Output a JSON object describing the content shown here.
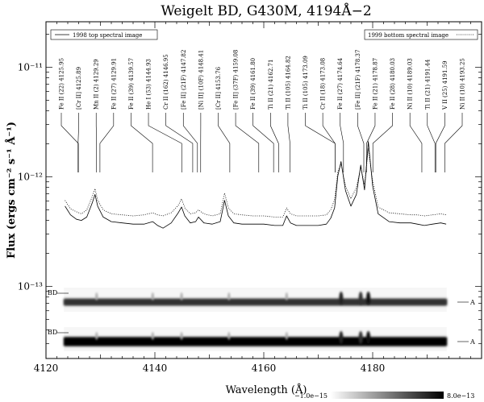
{
  "chart_data": {
    "type": "line",
    "title": "Weigelt BD, G430M, 4194Å−2",
    "xlabel": "Wavelength (Å)",
    "ylabel": "Flux (ergs cm⁻² s⁻¹ Å⁻¹)",
    "xlim": [
      4120,
      4200
    ],
    "ylim": [
      2.2e-14,
      2.6e-11
    ],
    "y_scale": "log",
    "x_ticks": [
      4120,
      4140,
      4160,
      4180
    ],
    "y_ticks": [
      {
        "value": 1e-13,
        "label": "10⁻¹³"
      },
      {
        "value": 1e-12,
        "label": "10⁻¹²"
      },
      {
        "value": 1e-11,
        "label": "10⁻¹¹"
      }
    ],
    "legend": [
      "1998 top spectral image",
      "1999 bottom spectral image"
    ],
    "series": [
      {
        "name": "1998 top spectral image",
        "style": "solid",
        "x": [
          4123.5,
          4124.5,
          4125.6,
          4126.5,
          4127.5,
          4128.5,
          4129.0,
          4129.5,
          4130.5,
          4132.0,
          4134.0,
          4136.0,
          4138.0,
          4139.6,
          4140.5,
          4141.5,
          4143.0,
          4144.3,
          4144.9,
          4145.5,
          4146.5,
          4147.5,
          4148.0,
          4149.0,
          4150.5,
          4152.0,
          4152.8,
          4153.5,
          4154.5,
          4156.0,
          4158.0,
          4160.0,
          4162.0,
          4163.5,
          4164.2,
          4164.9,
          4166.0,
          4168.0,
          4170.0,
          4171.5,
          4172.3,
          4173.0,
          4173.6,
          4174.2,
          4175.0,
          4176.0,
          4177.0,
          4177.8,
          4178.5,
          4179.2,
          4180.0,
          4181.0,
          4183.0,
          4185.0,
          4187.0,
          4188.2,
          4189.5,
          4191.0,
          4192.5,
          4193.5
        ],
        "y": [
          5.4e-13,
          4.5e-13,
          4.1e-13,
          4e-13,
          4.3e-13,
          5.8e-13,
          6.9e-13,
          5.4e-13,
          4.3e-13,
          3.9e-13,
          3.8e-13,
          3.7e-13,
          3.7e-13,
          3.9e-13,
          3.6e-13,
          3.4e-13,
          3.8e-13,
          4.7e-13,
          5.3e-13,
          4.4e-13,
          3.8e-13,
          3.9e-13,
          4.3e-13,
          3.8e-13,
          3.7e-13,
          3.9e-13,
          6.1e-13,
          4.4e-13,
          3.8e-13,
          3.7e-13,
          3.7e-13,
          3.7e-13,
          3.6e-13,
          3.6e-13,
          4.4e-13,
          3.8e-13,
          3.6e-13,
          3.6e-13,
          3.6e-13,
          3.7e-13,
          4.2e-13,
          5.2e-13,
          1.02e-12,
          1.38e-12,
          7.5e-13,
          5.4e-13,
          6.9e-13,
          1.28e-12,
          7.6e-13,
          2.1e-12,
          8.2e-13,
          4.6e-13,
          3.9e-13,
          3.8e-13,
          3.8e-13,
          3.7e-13,
          3.6e-13,
          3.7e-13,
          3.8e-13,
          3.7e-13
        ]
      },
      {
        "name": "1999 bottom spectral image",
        "style": "dotted",
        "x": [
          4123.5,
          4124.5,
          4125.6,
          4126.5,
          4127.5,
          4128.5,
          4129.0,
          4129.5,
          4130.5,
          4132.0,
          4134.0,
          4136.0,
          4138.0,
          4139.6,
          4140.5,
          4141.5,
          4143.0,
          4144.3,
          4144.9,
          4145.5,
          4146.5,
          4147.5,
          4148.0,
          4149.0,
          4150.5,
          4152.0,
          4152.8,
          4153.5,
          4154.5,
          4156.0,
          4158.0,
          4160.0,
          4162.0,
          4163.5,
          4164.2,
          4164.9,
          4166.0,
          4168.0,
          4170.0,
          4171.5,
          4172.3,
          4173.0,
          4173.6,
          4174.2,
          4175.0,
          4176.0,
          4177.0,
          4177.8,
          4178.5,
          4179.2,
          4180.0,
          4181.0,
          4183.0,
          4185.0,
          4187.0,
          4188.2,
          4189.5,
          4191.0,
          4192.5,
          4193.5
        ],
        "y": [
          6.1e-13,
          5.1e-13,
          4.8e-13,
          4.6e-13,
          5e-13,
          6.6e-13,
          7.8e-13,
          6.1e-13,
          5e-13,
          4.6e-13,
          4.5e-13,
          4.4e-13,
          4.5e-13,
          4.7e-13,
          4.5e-13,
          4.4e-13,
          4.7e-13,
          5.5e-13,
          6.3e-13,
          5.2e-13,
          4.6e-13,
          4.7e-13,
          5e-13,
          4.6e-13,
          4.4e-13,
          4.6e-13,
          7.1e-13,
          5.2e-13,
          4.6e-13,
          4.5e-13,
          4.4e-13,
          4.4e-13,
          4.3e-13,
          4.3e-13,
          5.2e-13,
          4.6e-13,
          4.4e-13,
          4.4e-13,
          4.4e-13,
          4.5e-13,
          5e-13,
          6.2e-13,
          1.12e-12,
          1.3e-12,
          8.3e-13,
          6.3e-13,
          8e-13,
          1.22e-12,
          8.5e-13,
          1.8e-12,
          9.2e-13,
          5.3e-13,
          4.7e-13,
          4.6e-13,
          4.5e-13,
          4.5e-13,
          4.4e-13,
          4.5e-13,
          4.6e-13,
          4.5e-13
        ]
      }
    ],
    "line_ids": [
      {
        "label": "Fe II (22) 4125.95",
        "x": 4125.95
      },
      {
        "label": "[Cr II] 4125.89",
        "x": 4125.89
      },
      {
        "label": "Mn II (2) 4129.29",
        "x": 4129.29
      },
      {
        "label": "Fe II (27) 4129.91",
        "x": 4129.91
      },
      {
        "label": "Fe II (39) 4139.57",
        "x": 4139.57
      },
      {
        "label": "He I (53) 4144.93",
        "x": 4144.93
      },
      {
        "label": "Cr II (162) 4146.95",
        "x": 4146.95
      },
      {
        "label": "[Fe II] (21F) 4147.82",
        "x": 4147.82
      },
      {
        "label": "[Ni II] (10F) 4148.41",
        "x": 4148.41
      },
      {
        "label": "[Cr II] 4153.76",
        "x": 4153.76
      },
      {
        "label": "[Fe II] (37F) 4159.08",
        "x": 4159.08
      },
      {
        "label": "Fe II (39) 4161.80",
        "x": 4161.8
      },
      {
        "label": "Ti II (21) 4162.71",
        "x": 4162.71
      },
      {
        "label": "Ti II (105) 4164.82",
        "x": 4164.82
      },
      {
        "label": "Ti II (105) 4173.09",
        "x": 4173.09
      },
      {
        "label": "Cr II (18) 4173.08",
        "x": 4173.08
      },
      {
        "label": "Fe II (27) 4174.64",
        "x": 4174.64
      },
      {
        "label": "[Fe II] (21F) 4178.37",
        "x": 4178.37
      },
      {
        "label": "Fe II (21) 4178.87",
        "x": 4178.87
      },
      {
        "label": "Fe II (28) 4180.03",
        "x": 4180.03
      },
      {
        "label": "Ni II (10) 4189.03",
        "x": 4189.03
      },
      {
        "label": "Ti II (21) 4191.44",
        "x": 4191.44
      },
      {
        "label": "V II (25) 4191.59",
        "x": 4191.59
      },
      {
        "label": "Ni II (10) 4193.25",
        "x": 4193.25
      }
    ],
    "spectral_images": [
      {
        "left_label": "BD",
        "right_label": "A"
      },
      {
        "left_label": "BD",
        "right_label": "A"
      }
    ],
    "colorbar": {
      "min_label": "−1.0e−15",
      "max_label": "8.0e−13"
    }
  }
}
